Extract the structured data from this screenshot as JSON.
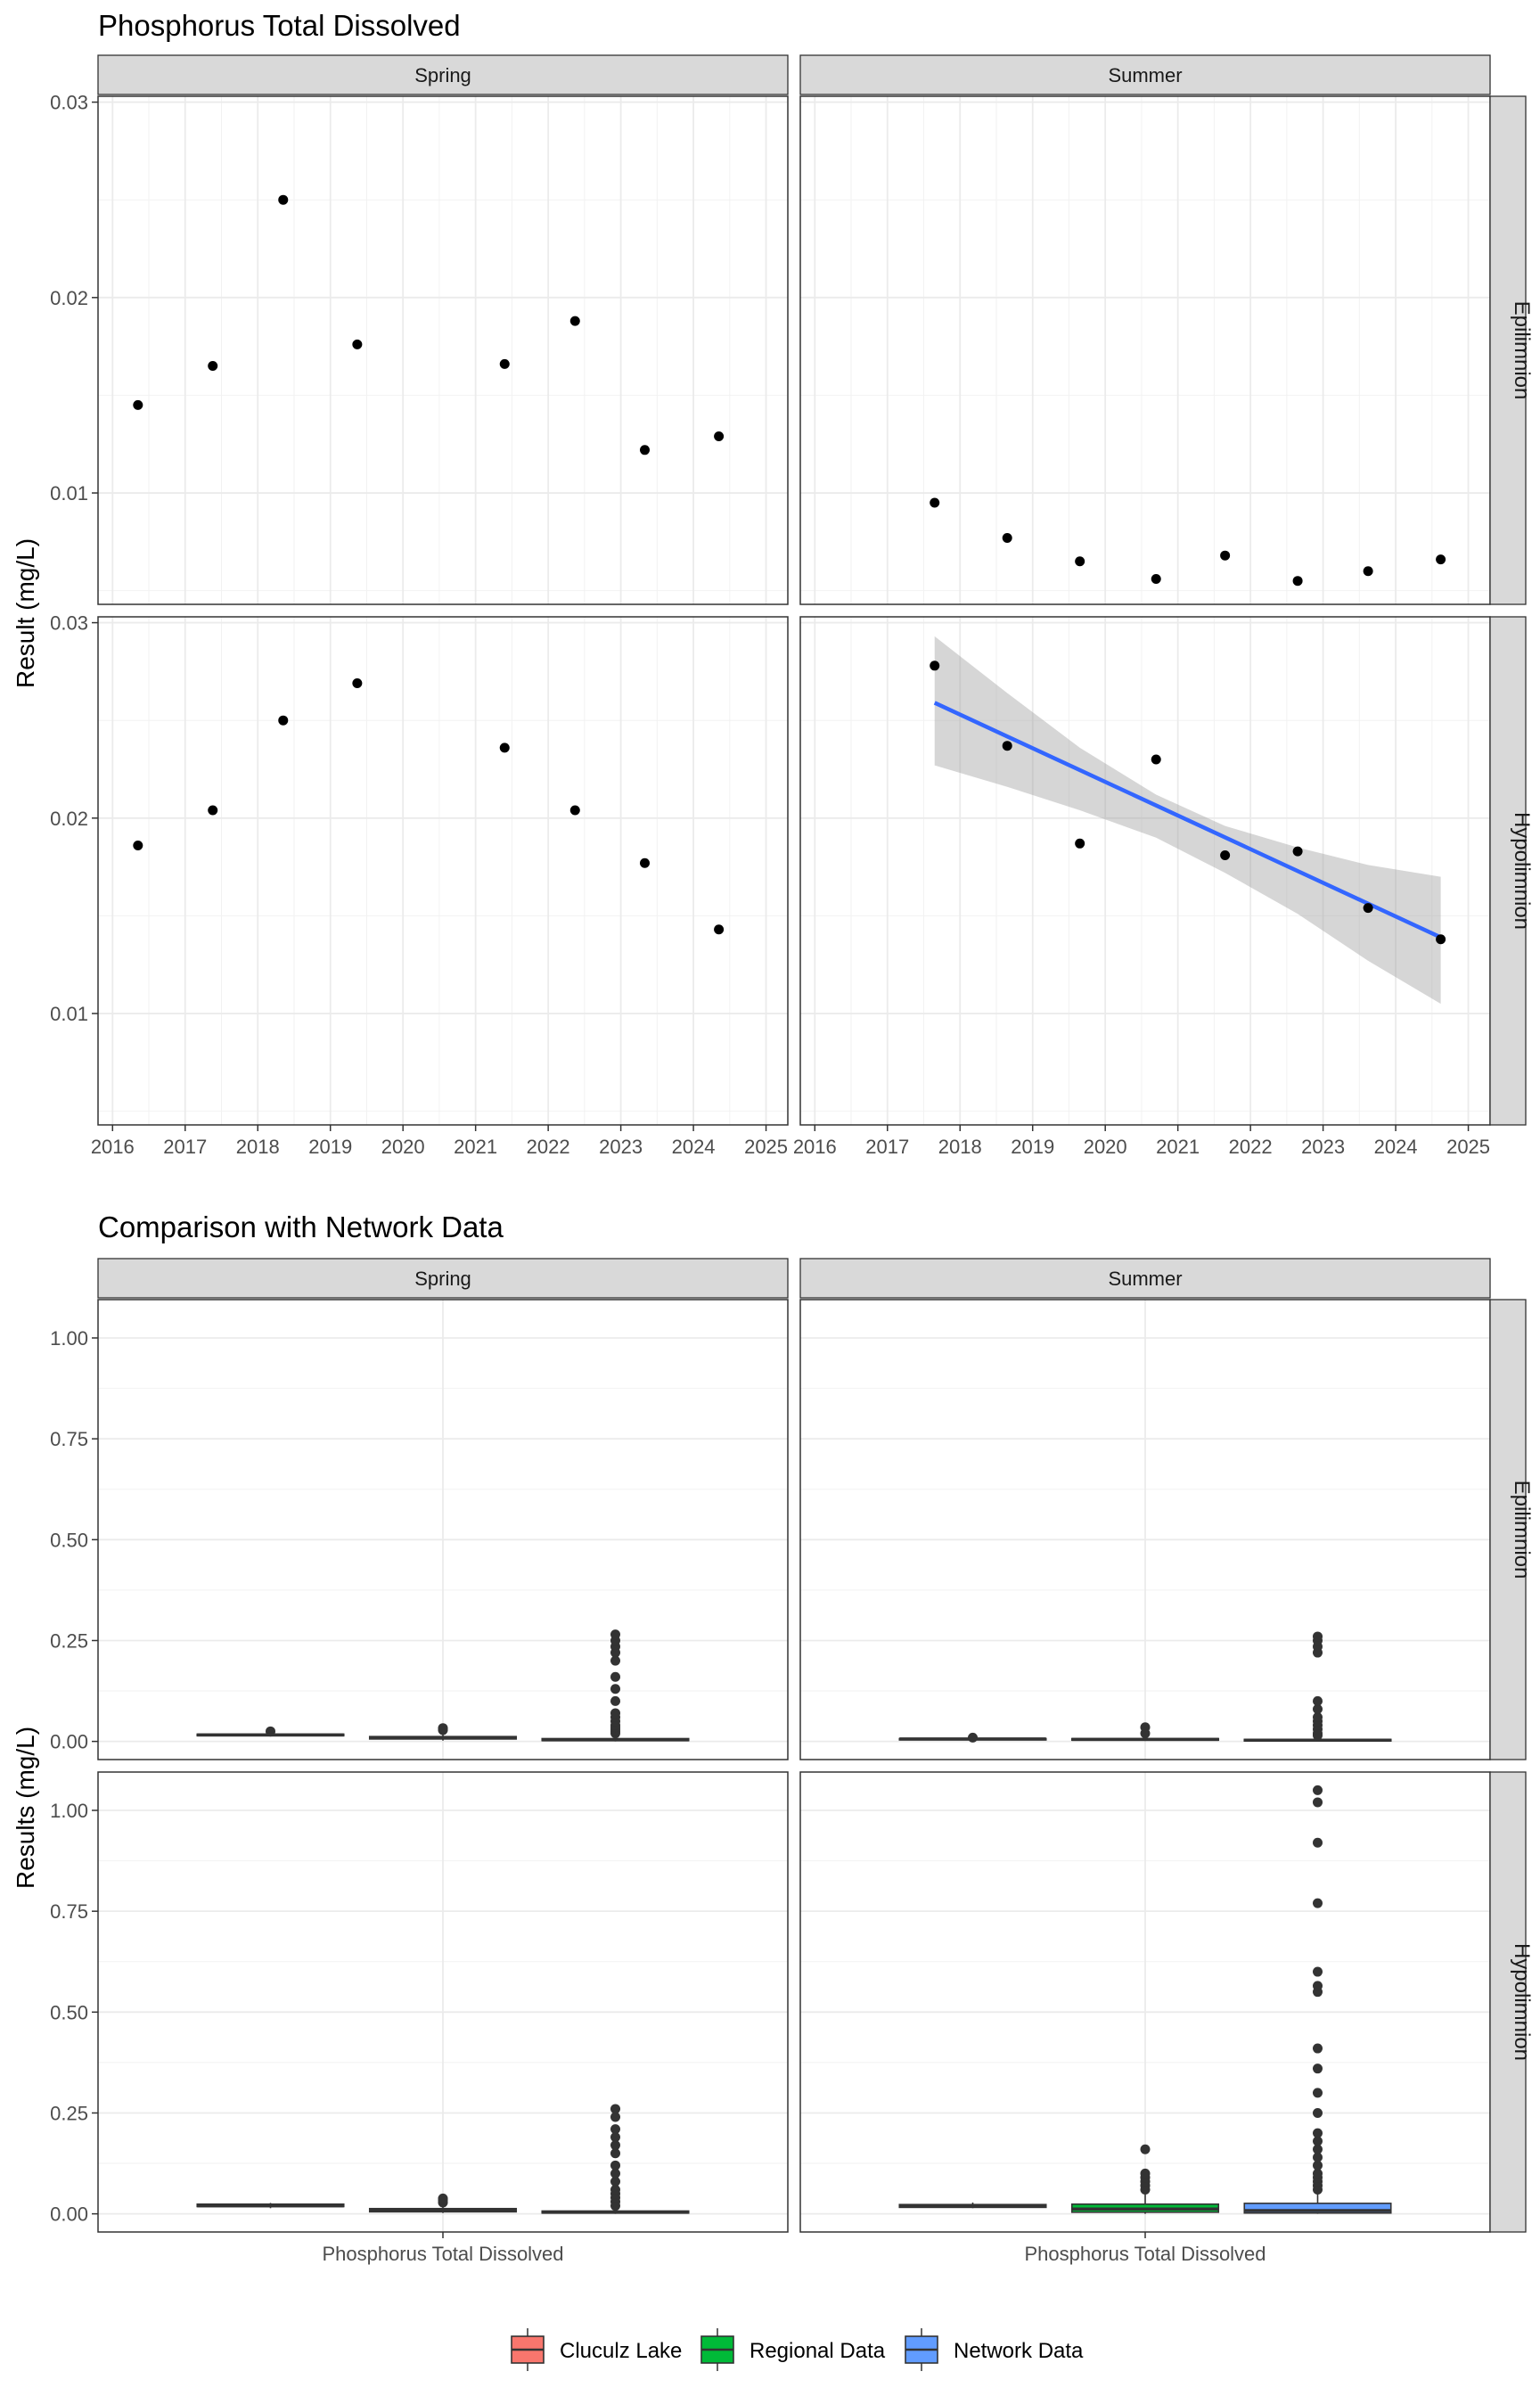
{
  "chart_data": [
    {
      "type": "scatter",
      "title": "Phosphorus Total Dissolved",
      "ylabel": "Result (mg/L)",
      "xlabel": "",
      "facet_cols": [
        "Spring",
        "Summer"
      ],
      "facet_rows": [
        "Epilimnion",
        "Hypolimnion"
      ],
      "xlim": [
        2015.8,
        2025.3
      ],
      "ylim": [
        0.0043,
        0.0303
      ],
      "x_ticks": [
        2016,
        2017,
        2018,
        2019,
        2020,
        2021,
        2022,
        2023,
        2024,
        2025
      ],
      "y_ticks": [
        0.01,
        0.02,
        0.03
      ],
      "y_tick_labels": [
        "0.01",
        "0.02",
        "0.03"
      ],
      "grid": true,
      "panels": [
        {
          "season": "Spring",
          "layer": "Epilimnion",
          "points": [
            [
              2016.35,
              0.0145
            ],
            [
              2017.38,
              0.0165
            ],
            [
              2018.35,
              0.025
            ],
            [
              2019.37,
              0.0176
            ],
            [
              2021.4,
              0.0166
            ],
            [
              2022.37,
              0.0188
            ],
            [
              2023.33,
              0.0122
            ],
            [
              2024.35,
              0.0129
            ]
          ]
        },
        {
          "season": "Summer",
          "layer": "Epilimnion",
          "points": [
            [
              2017.65,
              0.0095
            ],
            [
              2018.65,
              0.0077
            ],
            [
              2019.65,
              0.0065
            ],
            [
              2020.7,
              0.0056
            ],
            [
              2021.65,
              0.0068
            ],
            [
              2022.65,
              0.0055
            ],
            [
              2023.62,
              0.006
            ],
            [
              2024.62,
              0.0066
            ]
          ]
        },
        {
          "season": "Spring",
          "layer": "Hypolimnion",
          "points": [
            [
              2016.35,
              0.0186
            ],
            [
              2017.38,
              0.0204
            ],
            [
              2018.35,
              0.025
            ],
            [
              2019.37,
              0.0269
            ],
            [
              2021.4,
              0.0236
            ],
            [
              2022.37,
              0.0204
            ],
            [
              2023.33,
              0.0177
            ],
            [
              2024.35,
              0.0143
            ]
          ]
        },
        {
          "season": "Summer",
          "layer": "Hypolimnion",
          "points": [
            [
              2017.65,
              0.0278
            ],
            [
              2018.65,
              0.0237
            ],
            [
              2019.65,
              0.0187
            ],
            [
              2020.7,
              0.023
            ],
            [
              2021.65,
              0.0181
            ],
            [
              2022.65,
              0.0183
            ],
            [
              2023.62,
              0.0154
            ],
            [
              2024.62,
              0.0138
            ]
          ],
          "trend": {
            "line": [
              [
                2017.65,
                0.0259
              ],
              [
                2024.62,
                0.0139
              ]
            ],
            "ci_upper": [
              [
                2017.65,
                0.0293
              ],
              [
                2018.65,
                0.0264
              ],
              [
                2019.65,
                0.0236
              ],
              [
                2020.7,
                0.0212
              ],
              [
                2021.65,
                0.0196
              ],
              [
                2022.65,
                0.0185
              ],
              [
                2023.62,
                0.0176
              ],
              [
                2024.62,
                0.017
              ]
            ],
            "ci_lower": [
              [
                2017.65,
                0.0227
              ],
              [
                2018.65,
                0.0216
              ],
              [
                2019.65,
                0.0204
              ],
              [
                2020.7,
                0.019
              ],
              [
                2021.65,
                0.0172
              ],
              [
                2022.65,
                0.0151
              ],
              [
                2023.62,
                0.0127
              ],
              [
                2024.62,
                0.0105
              ]
            ]
          }
        }
      ]
    },
    {
      "type": "box",
      "title": "Comparison with Network Data",
      "ylabel": "Results (mg/L)",
      "x_category": "Phosphorus Total Dissolved",
      "facet_cols": [
        "Spring",
        "Summer"
      ],
      "facet_rows": [
        "Epilimnion",
        "Hypolimnion"
      ],
      "ylim": [
        -0.045,
        1.095
      ],
      "y_ticks": [
        0,
        0.25,
        0.5,
        0.75,
        1.0
      ],
      "y_tick_labels": [
        "0.00",
        "0.25",
        "0.50",
        "0.75",
        "1.00"
      ],
      "grid": true,
      "legend_position": "bottom",
      "groups": [
        {
          "name": "Cluculz Lake",
          "color": "#F8766D"
        },
        {
          "name": "Regional Data",
          "color": "#00BA38"
        },
        {
          "name": "Network Data",
          "color": "#619CFF"
        }
      ],
      "panels": [
        {
          "season": "Spring",
          "layer": "Epilimnion",
          "boxes": [
            {
              "group": "Cluculz Lake",
              "q1": 0.014,
              "median": 0.016,
              "q3": 0.018,
              "whisker_low": 0.012,
              "whisker_high": 0.02,
              "outliers": [
                0.025
              ]
            },
            {
              "group": "Regional Data",
              "q1": 0.006,
              "median": 0.009,
              "q3": 0.012,
              "whisker_low": 0.002,
              "whisker_high": 0.02,
              "outliers": [
                0.028,
                0.031,
                0.033
              ]
            },
            {
              "group": "Network Data",
              "q1": 0.002,
              "median": 0.004,
              "q3": 0.007,
              "whisker_low": 0.0,
              "whisker_high": 0.015,
              "outliers": [
                0.02,
                0.025,
                0.03,
                0.035,
                0.04,
                0.05,
                0.06,
                0.07,
                0.1,
                0.13,
                0.16,
                0.2,
                0.22,
                0.235,
                0.25,
                0.265
              ]
            }
          ]
        },
        {
          "season": "Summer",
          "layer": "Epilimnion",
          "boxes": [
            {
              "group": "Cluculz Lake",
              "q1": 0.005,
              "median": 0.006,
              "q3": 0.007,
              "whisker_low": 0.005,
              "whisker_high": 0.009,
              "outliers": [
                0.0095
              ]
            },
            {
              "group": "Regional Data",
              "q1": 0.003,
              "median": 0.005,
              "q3": 0.007,
              "whisker_low": 0.001,
              "whisker_high": 0.012,
              "outliers": [
                0.02,
                0.035
              ]
            },
            {
              "group": "Network Data",
              "q1": 0.001,
              "median": 0.003,
              "q3": 0.005,
              "whisker_low": 0.0,
              "whisker_high": 0.01,
              "outliers": [
                0.015,
                0.02,
                0.03,
                0.04,
                0.05,
                0.06,
                0.08,
                0.1,
                0.22,
                0.235,
                0.25,
                0.26
              ]
            }
          ]
        },
        {
          "season": "Spring",
          "layer": "Hypolimnion",
          "boxes": [
            {
              "group": "Cluculz Lake",
              "q1": 0.018,
              "median": 0.02,
              "q3": 0.024,
              "whisker_low": 0.014,
              "whisker_high": 0.027,
              "outliers": []
            },
            {
              "group": "Regional Data",
              "q1": 0.005,
              "median": 0.009,
              "q3": 0.013,
              "whisker_low": 0.002,
              "whisker_high": 0.02,
              "outliers": [
                0.028,
                0.034,
                0.038
              ]
            },
            {
              "group": "Network Data",
              "q1": 0.002,
              "median": 0.004,
              "q3": 0.007,
              "whisker_low": 0.0,
              "whisker_high": 0.015,
              "outliers": [
                0.02,
                0.03,
                0.04,
                0.05,
                0.06,
                0.08,
                0.1,
                0.12,
                0.15,
                0.17,
                0.19,
                0.21,
                0.24,
                0.26
              ]
            }
          ]
        },
        {
          "season": "Summer",
          "layer": "Hypolimnion",
          "boxes": [
            {
              "group": "Cluculz Lake",
              "q1": 0.016,
              "median": 0.019,
              "q3": 0.023,
              "whisker_low": 0.014,
              "whisker_high": 0.028,
              "outliers": []
            },
            {
              "group": "Regional Data",
              "q1": 0.004,
              "median": 0.012,
              "q3": 0.024,
              "whisker_low": 0.0,
              "whisker_high": 0.05,
              "outliers": [
                0.06,
                0.07,
                0.08,
                0.09,
                0.1,
                0.16
              ]
            },
            {
              "group": "Network Data",
              "q1": 0.002,
              "median": 0.008,
              "q3": 0.026,
              "whisker_low": 0.0,
              "whisker_high": 0.05,
              "outliers": [
                0.06,
                0.07,
                0.08,
                0.09,
                0.1,
                0.12,
                0.14,
                0.16,
                0.18,
                0.2,
                0.25,
                0.3,
                0.36,
                0.41,
                0.55,
                0.565,
                0.6,
                0.77,
                0.92,
                1.02,
                1.05
              ]
            }
          ]
        }
      ]
    }
  ]
}
